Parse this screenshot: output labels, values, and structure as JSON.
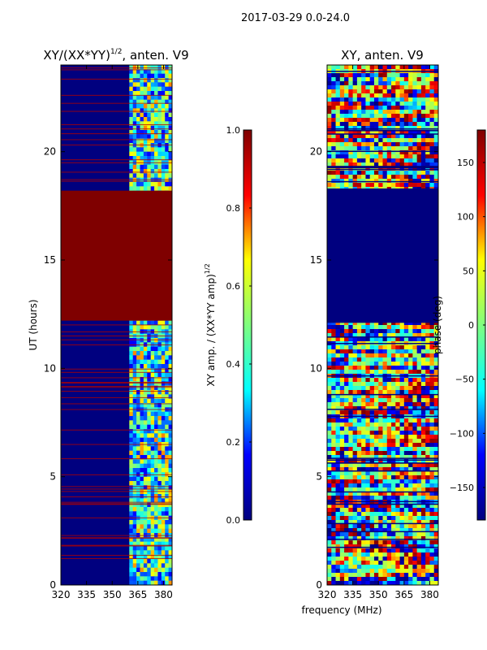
{
  "figure_title": "2017-03-29 0.0-24.0",
  "shared_xlabel": "frequency (MHz)",
  "colors": {
    "background": "#00007f",
    "jet_stops": [
      "#00007f",
      "#0000ff",
      "#00ffff",
      "#7fff7f",
      "#ffff00",
      "#ff0000",
      "#7f0000"
    ]
  },
  "chart_data": [
    {
      "type": "heatmap",
      "title_main": "XY/(XX*YY)",
      "title_sup": "1/2",
      "title_tail": ", anten. V9",
      "ylabel": "UT (hours)",
      "xlim": [
        320,
        385
      ],
      "ylim": [
        0,
        24
      ],
      "xticks": [
        320,
        335,
        350,
        365,
        380
      ],
      "yticks": [
        0,
        5,
        10,
        15,
        20
      ],
      "bands": [
        {
          "y_start": 12.2,
          "y_end": 18.2,
          "value": 1.0,
          "label": "saturated block"
        }
      ],
      "active_freq_range": [
        360,
        385
      ],
      "colorbar": {
        "label_main": "XY amp. / (XX*YY amp)",
        "label_sup": "1/2",
        "range": [
          0.0,
          1.0
        ],
        "ticks": [
          "0.0",
          "0.2",
          "0.4",
          "0.6",
          "0.8",
          "1.0"
        ],
        "tick_values": [
          0.0,
          0.2,
          0.4,
          0.6,
          0.8,
          1.0
        ]
      }
    },
    {
      "type": "heatmap",
      "title": "XY, anten. V9",
      "ylabel": "",
      "xlim": [
        320,
        385
      ],
      "ylim": [
        0,
        24
      ],
      "xticks": [
        320,
        335,
        350,
        365,
        380
      ],
      "yticks": [
        0,
        5,
        10,
        15,
        20
      ],
      "bands": [
        {
          "y_start": 12.1,
          "y_end": 18.3,
          "value": -180,
          "label": "empty block"
        }
      ],
      "colorbar": {
        "label": "phase (deg)",
        "range": [
          -180,
          180
        ],
        "ticks": [
          "−150",
          "−100",
          "−50",
          "0",
          "50",
          "100",
          "150"
        ],
        "tick_values": [
          -150,
          -100,
          -50,
          0,
          50,
          100,
          150
        ]
      }
    }
  ]
}
